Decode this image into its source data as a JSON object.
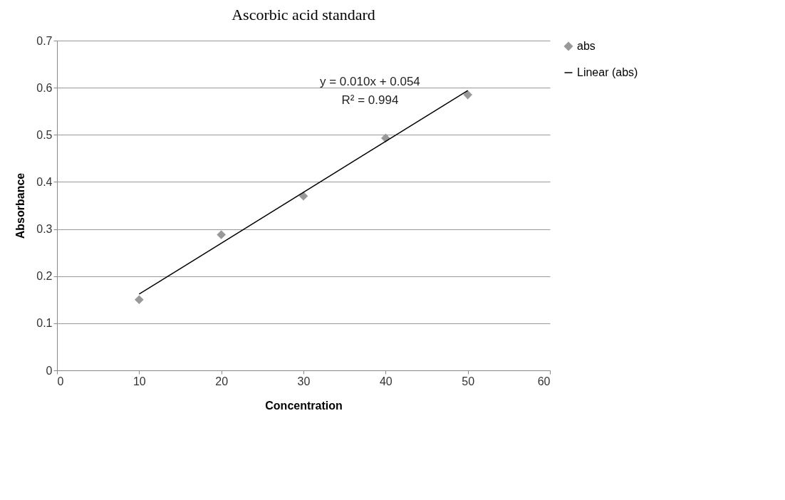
{
  "chart_data": {
    "type": "scatter",
    "title": "Ascorbic acid standard",
    "xlabel": "Concentration",
    "ylabel": "Absorbance",
    "x": [
      10,
      20,
      30,
      40,
      50
    ],
    "series": [
      {
        "name": "abs",
        "marker": "diamond",
        "color": "#999999",
        "values": [
          0.15,
          0.288,
          0.37,
          0.493,
          0.585
        ]
      },
      {
        "name": "Linear (abs)",
        "type": "line",
        "color": "#000000",
        "x": [
          10,
          50
        ],
        "values": [
          0.162,
          0.594
        ]
      }
    ],
    "annotations": [
      "y = 0.010x + 0.054",
      "R² = 0.994"
    ],
    "xlim": [
      0,
      60
    ],
    "xticks": [
      0,
      10,
      20,
      30,
      40,
      50,
      60
    ],
    "ylim": [
      0,
      0.7
    ],
    "yticks": [
      0,
      0.1,
      0.2,
      0.3,
      0.4,
      0.5,
      0.6,
      0.7
    ],
    "grid": "y",
    "legend": "right"
  }
}
